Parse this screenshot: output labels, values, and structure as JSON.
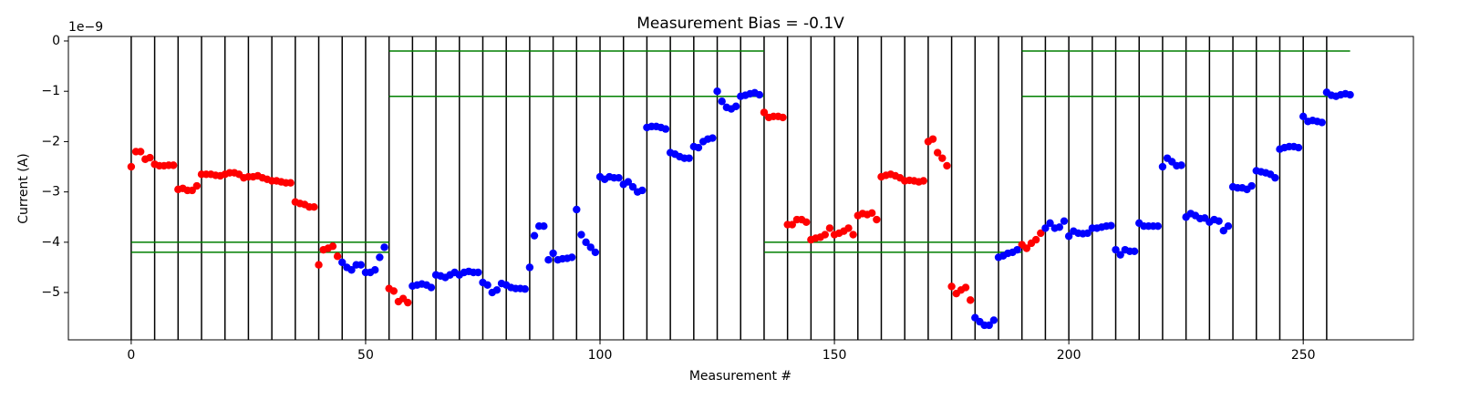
{
  "chart_data": {
    "type": "scatter",
    "title": "Measurement Bias = -0.1V",
    "xlabel": "Measurement #",
    "ylabel": "Current (A)",
    "y_offset_label": "1e−9",
    "xlim": [
      -13.4,
      273.5
    ],
    "ylim": [
      -5.94,
      0.09
    ],
    "xticks": [
      0,
      50,
      100,
      150,
      200,
      250
    ],
    "yticks": [
      {
        "value": 0,
        "label": "0"
      },
      {
        "value": -1,
        "label": "−1"
      },
      {
        "value": -2,
        "label": "−2"
      },
      {
        "value": -3,
        "label": "−3"
      },
      {
        "value": -4,
        "label": "−4"
      },
      {
        "value": -5,
        "label": "−5"
      }
    ],
    "vline_color": "#000000",
    "vlines": [
      0,
      5,
      10,
      15,
      20,
      25,
      30,
      35,
      40,
      45,
      50,
      55,
      60,
      65,
      70,
      75,
      80,
      85,
      90,
      95,
      100,
      105,
      110,
      115,
      120,
      125,
      130,
      135,
      140,
      145,
      150,
      155,
      160,
      165,
      170,
      175,
      180,
      185,
      190,
      195,
      200,
      205,
      210,
      215,
      220,
      225,
      230,
      235,
      240,
      245,
      250,
      255
    ],
    "hline_color": "#007f00",
    "hlines": [
      {
        "y": -4.0,
        "xmin": 0,
        "xmax": 55
      },
      {
        "y": -4.2,
        "xmin": 0,
        "xmax": 55
      },
      {
        "y": -0.2,
        "xmin": 55,
        "xmax": 135
      },
      {
        "y": -1.1,
        "xmin": 55,
        "xmax": 135
      },
      {
        "y": -4.0,
        "xmin": 135,
        "xmax": 190
      },
      {
        "y": -4.2,
        "xmin": 135,
        "xmax": 190
      },
      {
        "y": -0.2,
        "xmin": 190,
        "xmax": 260
      },
      {
        "y": -1.1,
        "xmin": 190,
        "xmax": 260
      }
    ],
    "series": [
      {
        "color": "#ff0000",
        "x": [
          0,
          1,
          2,
          3,
          4,
          5,
          6,
          7,
          8,
          9,
          10,
          11,
          12,
          13,
          14,
          15,
          16,
          17,
          18,
          19,
          20,
          21,
          22,
          23,
          24,
          25,
          26,
          27,
          28,
          29,
          30,
          31,
          32,
          33,
          34,
          35,
          36,
          37,
          38,
          39,
          40,
          41,
          42,
          43,
          44,
          55,
          56,
          57,
          58,
          59,
          135,
          136,
          137,
          138,
          139,
          140,
          141,
          142,
          143,
          144,
          145,
          146,
          147,
          148,
          149,
          150,
          151,
          152,
          153,
          154,
          155,
          156,
          157,
          158,
          159,
          160,
          161,
          162,
          163,
          164,
          165,
          166,
          167,
          168,
          169,
          170,
          171,
          172,
          173,
          174,
          175,
          176,
          177,
          178,
          179,
          190,
          191,
          192,
          193,
          194
        ],
        "values": [
          -2.5,
          -2.2,
          -2.2,
          -2.35,
          -2.32,
          -2.45,
          -2.48,
          -2.48,
          -2.47,
          -2.47,
          -2.95,
          -2.93,
          -2.97,
          -2.97,
          -2.88,
          -2.65,
          -2.65,
          -2.65,
          -2.67,
          -2.68,
          -2.65,
          -2.62,
          -2.62,
          -2.65,
          -2.72,
          -2.7,
          -2.7,
          -2.68,
          -2.72,
          -2.75,
          -2.78,
          -2.78,
          -2.8,
          -2.82,
          -2.82,
          -3.2,
          -3.23,
          -3.25,
          -3.3,
          -3.3,
          -4.45,
          -4.15,
          -4.12,
          -4.08,
          -4.28,
          -4.92,
          -4.97,
          -5.18,
          -5.12,
          -5.2,
          -1.42,
          -1.52,
          -1.5,
          -1.5,
          -1.52,
          -3.65,
          -3.65,
          -3.55,
          -3.55,
          -3.6,
          -3.95,
          -3.92,
          -3.9,
          -3.85,
          -3.72,
          -3.85,
          -3.82,
          -3.78,
          -3.72,
          -3.85,
          -3.47,
          -3.43,
          -3.45,
          -3.42,
          -3.55,
          -2.7,
          -2.67,
          -2.65,
          -2.68,
          -2.72,
          -2.78,
          -2.77,
          -2.78,
          -2.8,
          -2.78,
          -2.0,
          -1.95,
          -2.22,
          -2.33,
          -2.48,
          -4.88,
          -5.02,
          -4.95,
          -4.9,
          -5.15,
          -4.05,
          -4.12,
          -4.02,
          -3.95,
          -3.82
        ]
      },
      {
        "color": "#0000ff",
        "x": [
          45,
          46,
          47,
          48,
          49,
          50,
          51,
          52,
          53,
          54,
          60,
          61,
          62,
          63,
          64,
          65,
          66,
          67,
          68,
          69,
          70,
          71,
          72,
          73,
          74,
          75,
          76,
          77,
          78,
          79,
          80,
          81,
          82,
          83,
          84,
          85,
          86,
          87,
          88,
          89,
          90,
          91,
          92,
          93,
          94,
          95,
          96,
          97,
          98,
          99,
          100,
          101,
          102,
          103,
          104,
          105,
          106,
          107,
          108,
          109,
          110,
          111,
          112,
          113,
          114,
          115,
          116,
          117,
          118,
          119,
          120,
          121,
          122,
          123,
          124,
          125,
          126,
          127,
          128,
          129,
          130,
          131,
          132,
          133,
          134,
          180,
          181,
          182,
          183,
          184,
          185,
          186,
          187,
          188,
          189,
          195,
          196,
          197,
          198,
          199,
          200,
          201,
          202,
          203,
          204,
          205,
          206,
          207,
          208,
          209,
          210,
          211,
          212,
          213,
          214,
          215,
          216,
          217,
          218,
          219,
          220,
          221,
          222,
          223,
          224,
          225,
          226,
          227,
          228,
          229,
          230,
          231,
          232,
          233,
          234,
          235,
          236,
          237,
          238,
          239,
          240,
          241,
          242,
          243,
          244,
          245,
          246,
          247,
          248,
          249,
          250,
          251,
          252,
          253,
          254,
          255,
          256,
          257,
          258,
          259,
          260
        ],
        "values": [
          -4.4,
          -4.5,
          -4.55,
          -4.45,
          -4.45,
          -4.6,
          -4.6,
          -4.55,
          -4.3,
          -4.1,
          -4.87,
          -4.85,
          -4.83,
          -4.85,
          -4.9,
          -4.65,
          -4.67,
          -4.7,
          -4.65,
          -4.6,
          -4.65,
          -4.6,
          -4.58,
          -4.6,
          -4.6,
          -4.8,
          -4.85,
          -5.0,
          -4.95,
          -4.82,
          -4.85,
          -4.9,
          -4.92,
          -4.92,
          -4.93,
          -4.5,
          -3.87,
          -3.68,
          -3.68,
          -4.35,
          -4.22,
          -4.35,
          -4.33,
          -4.32,
          -4.3,
          -3.35,
          -3.85,
          -4.0,
          -4.1,
          -4.2,
          -2.7,
          -2.75,
          -2.7,
          -2.72,
          -2.72,
          -2.85,
          -2.8,
          -2.9,
          -3.0,
          -2.97,
          -1.72,
          -1.7,
          -1.7,
          -1.72,
          -1.75,
          -2.22,
          -2.25,
          -2.3,
          -2.33,
          -2.33,
          -2.1,
          -2.12,
          -2.0,
          -1.95,
          -1.93,
          -1.0,
          -1.2,
          -1.32,
          -1.35,
          -1.3,
          -1.1,
          -1.08,
          -1.05,
          -1.03,
          -1.07,
          -5.5,
          -5.58,
          -5.65,
          -5.65,
          -5.55,
          -4.3,
          -4.27,
          -4.22,
          -4.2,
          -4.15,
          -3.72,
          -3.62,
          -3.72,
          -3.7,
          -3.58,
          -3.88,
          -3.78,
          -3.82,
          -3.83,
          -3.82,
          -3.72,
          -3.72,
          -3.7,
          -3.68,
          -3.67,
          -4.15,
          -4.25,
          -4.15,
          -4.18,
          -4.18,
          -3.62,
          -3.68,
          -3.68,
          -3.68,
          -3.68,
          -2.5,
          -2.33,
          -2.4,
          -2.48,
          -2.47,
          -3.5,
          -3.43,
          -3.47,
          -3.53,
          -3.52,
          -3.6,
          -3.55,
          -3.58,
          -3.77,
          -3.68,
          -2.9,
          -2.92,
          -2.92,
          -2.95,
          -2.88,
          -2.58,
          -2.6,
          -2.62,
          -2.65,
          -2.72,
          -2.15,
          -2.12,
          -2.1,
          -2.1,
          -2.12,
          -1.5,
          -1.6,
          -1.58,
          -1.6,
          -1.62,
          -1.02,
          -1.08,
          -1.1,
          -1.07,
          -1.05,
          -1.07
        ]
      }
    ]
  }
}
